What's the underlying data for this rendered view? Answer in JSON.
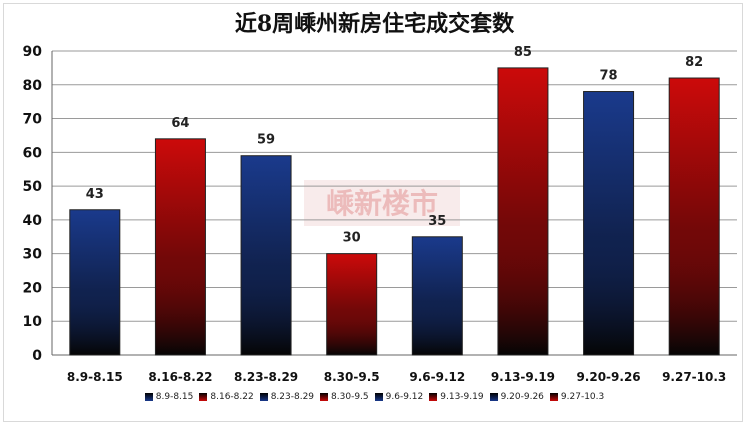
{
  "chart_data": {
    "type": "bar",
    "title": "近8周嵊州新房住宅成交套数",
    "categories": [
      "8.9-8.15",
      "8.16-8.22",
      "8.23-8.29",
      "8.30-9.5",
      "9.6-9.12",
      "9.13-9.19",
      "9.20-9.26",
      "9.27-10.3"
    ],
    "values": [
      43,
      64,
      59,
      30,
      35,
      85,
      78,
      82
    ],
    "bar_colors": [
      "#1a3a8c",
      "#cc0a0a",
      "#1a3a8c",
      "#cc0a0a",
      "#1a3a8c",
      "#cc0a0a",
      "#1a3a8c",
      "#cc0a0a"
    ],
    "ylim": [
      0,
      90
    ],
    "yticks": [
      0,
      10,
      20,
      30,
      40,
      50,
      60,
      70,
      80,
      90
    ],
    "grid": true,
    "legend_position": "bottom",
    "xlabel": "",
    "ylabel": ""
  },
  "watermark_text": "嵊新楼市"
}
